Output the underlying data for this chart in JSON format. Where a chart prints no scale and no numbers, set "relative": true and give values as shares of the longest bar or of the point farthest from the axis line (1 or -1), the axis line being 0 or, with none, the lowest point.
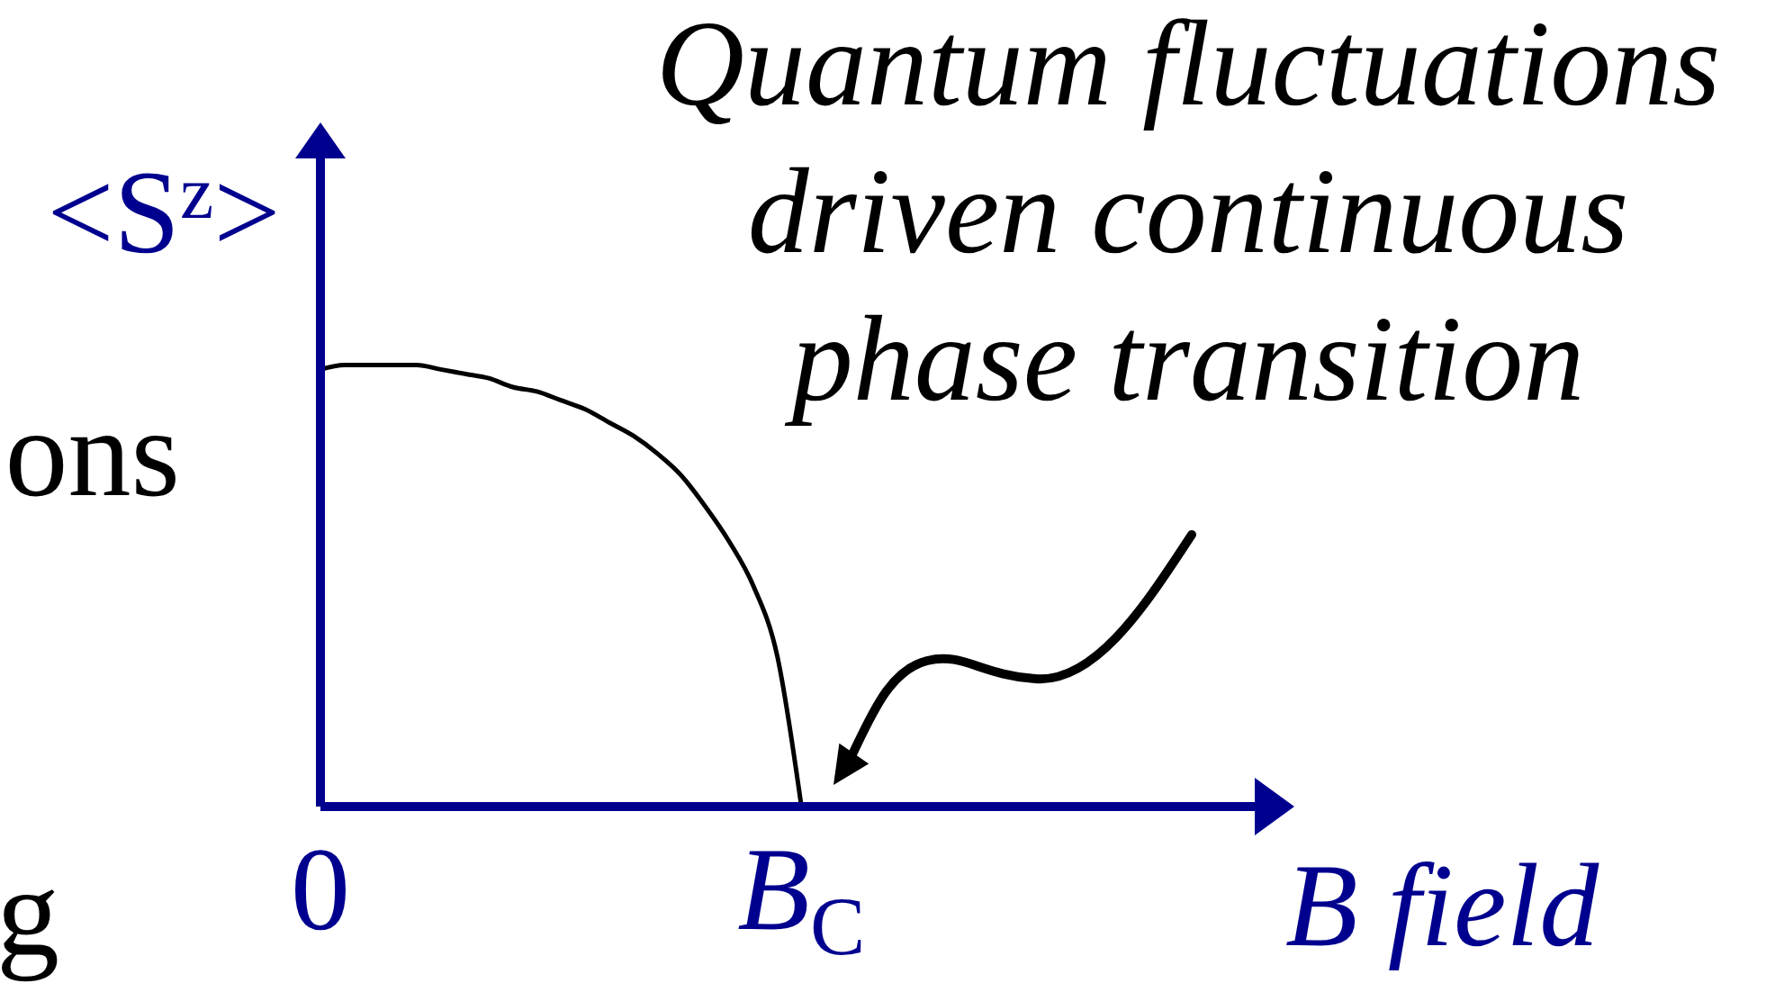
{
  "chart_data": {
    "type": "line",
    "categories": [
      "0",
      null,
      null,
      null,
      null,
      null,
      null,
      null,
      null,
      null,
      null,
      null,
      null,
      null,
      null,
      null,
      null,
      null,
      null,
      null,
      "B$_{C}$",
      null,
      null,
      null,
      null,
      null,
      null,
      null,
      null,
      null,
      null,
      null,
      null,
      null,
      null,
      null,
      null,
      null,
      null,
      null
    ],
    "values": [
      0.99,
      1.0,
      1.0,
      1.0,
      1.0,
      0.99,
      0.98,
      0.97,
      0.95,
      0.94,
      0.92,
      0.9,
      0.87,
      0.84,
      0.8,
      0.75,
      0.68,
      0.6,
      0.5,
      0.34,
      0,
      null,
      null,
      null,
      null,
      null,
      null,
      null,
      null,
      null,
      null,
      null,
      null,
      null,
      null,
      null,
      null,
      null,
      null,
      null
    ],
    "color": "#000000",
    "relative": true,
    "xlabel": "B field",
    "ylabel": "<S$^{z}$>",
    "tick_labels": "x",
    "annotations": [
      "Quantum fluctuations\ndriven continuous\nphase transition",
      "ons",
      "g"
    ]
  }
}
